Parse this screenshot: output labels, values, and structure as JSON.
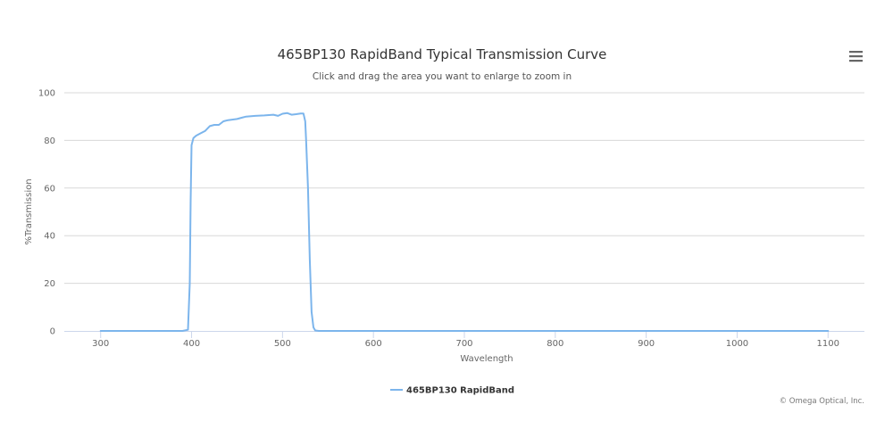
{
  "chart_data": {
    "type": "line",
    "title": "465BP130 RapidBand Typical Transmission Curve",
    "subtitle": "Click and drag the area you want to enlarge to zoom in",
    "xlabel": "Wavelength",
    "ylabel": "%Transmission",
    "xlim": [
      260,
      1140
    ],
    "ylim": [
      0,
      100
    ],
    "x_ticks": [
      300,
      400,
      500,
      600,
      700,
      800,
      900,
      1000,
      1100
    ],
    "y_ticks": [
      0,
      20,
      40,
      60,
      80,
      100
    ],
    "grid": true,
    "legend_position": "bottom-center",
    "colors": {
      "series": "#7cb5ec",
      "grid": "#d8d8d8",
      "axis": "#ccd6eb"
    },
    "series": [
      {
        "name": "465BP130 RapidBand",
        "points": [
          [
            300,
            0
          ],
          [
            390,
            0
          ],
          [
            396,
            0.5
          ],
          [
            398,
            20
          ],
          [
            399,
            55
          ],
          [
            400,
            78
          ],
          [
            402,
            81
          ],
          [
            405,
            82
          ],
          [
            410,
            83
          ],
          [
            415,
            84
          ],
          [
            420,
            86
          ],
          [
            425,
            86.5
          ],
          [
            430,
            86.5
          ],
          [
            435,
            88
          ],
          [
            440,
            88.5
          ],
          [
            450,
            89
          ],
          [
            455,
            89.5
          ],
          [
            460,
            90
          ],
          [
            470,
            90.3
          ],
          [
            480,
            90.5
          ],
          [
            490,
            90.8
          ],
          [
            495,
            90.3
          ],
          [
            500,
            91.2
          ],
          [
            505,
            91.5
          ],
          [
            510,
            90.8
          ],
          [
            515,
            91
          ],
          [
            520,
            91.3
          ],
          [
            523,
            91.3
          ],
          [
            525,
            88
          ],
          [
            526,
            80
          ],
          [
            528,
            60
          ],
          [
            530,
            30
          ],
          [
            532,
            8
          ],
          [
            534,
            1.5
          ],
          [
            536,
            0.2
          ],
          [
            540,
            0
          ],
          [
            1100,
            0
          ]
        ]
      }
    ]
  },
  "menu": {
    "icon": "hamburger-menu-icon"
  },
  "credits": "© Omega Optical, Inc."
}
